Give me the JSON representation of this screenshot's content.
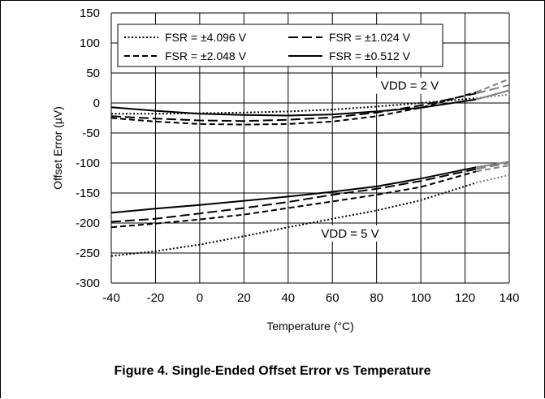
{
  "chart_data": {
    "type": "line",
    "xlabel": "Temperature (°C)",
    "ylabel": "Offset Error (µV)",
    "xlim": [
      -40,
      140
    ],
    "ylim": [
      -300,
      150
    ],
    "xticks": [
      -40,
      -20,
      0,
      20,
      40,
      60,
      80,
      100,
      120,
      140
    ],
    "yticks": [
      -300,
      -250,
      -200,
      -150,
      -100,
      -50,
      0,
      50,
      100,
      150
    ],
    "grid": true,
    "legend_position": "top-left",
    "extrapolated_color": "#7f7f7f",
    "series": [
      {
        "name": "FSR = ±4.096 V",
        "dash": "dotted",
        "group": "VDD = 2 V",
        "x": [
          -40,
          -20,
          0,
          20,
          40,
          60,
          80,
          100,
          125,
          140
        ],
        "y": [
          -18,
          -18,
          -17,
          -16,
          -14,
          -11,
          -6,
          0,
          8,
          14
        ]
      },
      {
        "name": "FSR = ±2.048 V",
        "dash": "dashed",
        "group": "VDD = 2 V",
        "x": [
          -40,
          -20,
          0,
          20,
          40,
          60,
          80,
          100,
          125,
          140
        ],
        "y": [
          -25,
          -31,
          -35,
          -36,
          -35,
          -31,
          -22,
          -8,
          18,
          40
        ]
      },
      {
        "name": "FSR = ±1.024 V",
        "dash": "longdash",
        "group": "VDD = 2 V",
        "x": [
          -40,
          -20,
          0,
          20,
          40,
          60,
          80,
          100,
          125,
          140
        ],
        "y": [
          -22,
          -26,
          -29,
          -30,
          -28,
          -24,
          -16,
          -4,
          16,
          30
        ]
      },
      {
        "name": "FSR = ±0.512 V",
        "dash": "solid",
        "group": "VDD = 2 V",
        "x": [
          -40,
          -20,
          0,
          20,
          40,
          60,
          80,
          100,
          125,
          140
        ],
        "y": [
          -7,
          -13,
          -18,
          -20,
          -21,
          -19,
          -14,
          -8,
          6,
          21
        ]
      },
      {
        "name": "FSR = ±4.096 V",
        "dash": "dotted",
        "group": "VDD = 5 V",
        "x": [
          -40,
          -20,
          0,
          20,
          40,
          60,
          80,
          100,
          125,
          140
        ],
        "y": [
          -255,
          -247,
          -236,
          -222,
          -207,
          -193,
          -179,
          -162,
          -133,
          -120
        ]
      },
      {
        "name": "FSR = ±2.048 V",
        "dash": "dashed",
        "group": "VDD = 5 V",
        "x": [
          -40,
          -20,
          0,
          20,
          40,
          60,
          80,
          100,
          125,
          140
        ],
        "y": [
          -207,
          -201,
          -194,
          -186,
          -175,
          -164,
          -153,
          -140,
          -114,
          -104
        ]
      },
      {
        "name": "FSR = ±1.024 V",
        "dash": "longdash",
        "group": "VDD = 5 V",
        "x": [
          -40,
          -20,
          0,
          20,
          40,
          60,
          80,
          100,
          125,
          140
        ],
        "y": [
          -198,
          -193,
          -184,
          -175,
          -165,
          -153,
          -143,
          -130,
          -110,
          -100
        ]
      },
      {
        "name": "FSR = ±0.512 V",
        "dash": "solid",
        "group": "VDD = 5 V",
        "x": [
          -40,
          -20,
          0,
          20,
          40,
          60,
          80,
          100,
          125,
          140
        ],
        "y": [
          -183,
          -176,
          -170,
          -163,
          -156,
          -148,
          -139,
          -126,
          -107,
          -98
        ]
      }
    ],
    "extrapolated_from_x": 125,
    "annotations": [
      {
        "text": "VDD = 2 V",
        "x": 95,
        "y": 22
      },
      {
        "text": "VDD = 5 V",
        "x": 68,
        "y": -224
      }
    ],
    "legend": [
      {
        "label": "FSR = ±4.096 V",
        "dash": "dotted"
      },
      {
        "label": "FSR = ±1.024 V",
        "dash": "longdash"
      },
      {
        "label": "FSR = ±2.048 V",
        "dash": "dashed"
      },
      {
        "label": "FSR = ±0.512 V",
        "dash": "solid"
      }
    ]
  },
  "caption": "Figure 4. Single-Ended Offset Error vs Temperature"
}
